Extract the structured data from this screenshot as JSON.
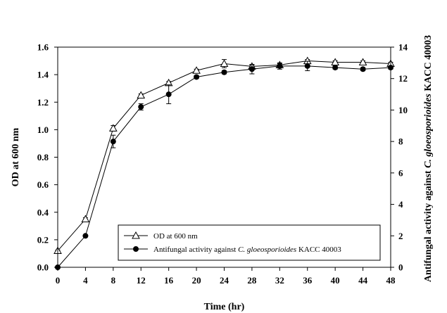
{
  "chart_data": {
    "type": "line",
    "title": "",
    "xlabel": "Time (hr)",
    "ylabel_left": "OD at 600 nm",
    "ylabel_right_parts": [
      "Antifungal activity against ",
      "C. gloeosporioides",
      " KACC 40003"
    ],
    "xlim": [
      0,
      48
    ],
    "ylim_left": [
      0,
      1.6
    ],
    "ylim_right": [
      0,
      14
    ],
    "x_ticks": [
      0,
      4,
      8,
      12,
      16,
      20,
      24,
      28,
      32,
      36,
      40,
      44,
      48
    ],
    "y_ticks_left": [
      "0.0",
      "0.2",
      "0.4",
      "0.6",
      "0.8",
      "1.0",
      "1.2",
      "1.4",
      "1.6"
    ],
    "y_ticks_right": [
      "0",
      "2",
      "4",
      "6",
      "8",
      "10",
      "12",
      "14"
    ],
    "grid": false,
    "series": [
      {
        "name": "OD at 600 nm",
        "axis": "left",
        "marker": "open-triangle",
        "x": [
          0,
          4,
          8,
          12,
          16,
          20,
          24,
          28,
          32,
          36,
          40,
          44,
          48
        ],
        "values": [
          0.12,
          0.35,
          1.01,
          1.25,
          1.34,
          1.43,
          1.48,
          1.46,
          1.47,
          1.5,
          1.49,
          1.49,
          1.48
        ],
        "errors": [
          0.005,
          0.01,
          0.02,
          0.01,
          0.01,
          0.01,
          0.03,
          0.01,
          0.01,
          0.01,
          0.01,
          0.01,
          0.01
        ]
      },
      {
        "name": "Antifungal activity against C. gloeosporioides KACC 40003",
        "name_parts": [
          "Antifungal activity against ",
          "C. gloeosporioides",
          " KACC 40003"
        ],
        "axis": "right",
        "marker": "filled-circle",
        "x": [
          0,
          4,
          8,
          12,
          16,
          20,
          24,
          28,
          32,
          36,
          40,
          44,
          48
        ],
        "values": [
          0,
          2.0,
          8.0,
          10.2,
          11.0,
          12.1,
          12.4,
          12.6,
          12.8,
          12.8,
          12.7,
          12.6,
          12.7
        ],
        "errors": [
          0,
          0,
          0.4,
          0.2,
          0.6,
          0.1,
          0.1,
          0.3,
          0.2,
          0.3,
          0.1,
          0.1,
          0.1
        ]
      }
    ],
    "legend_position": "bottom-right"
  }
}
